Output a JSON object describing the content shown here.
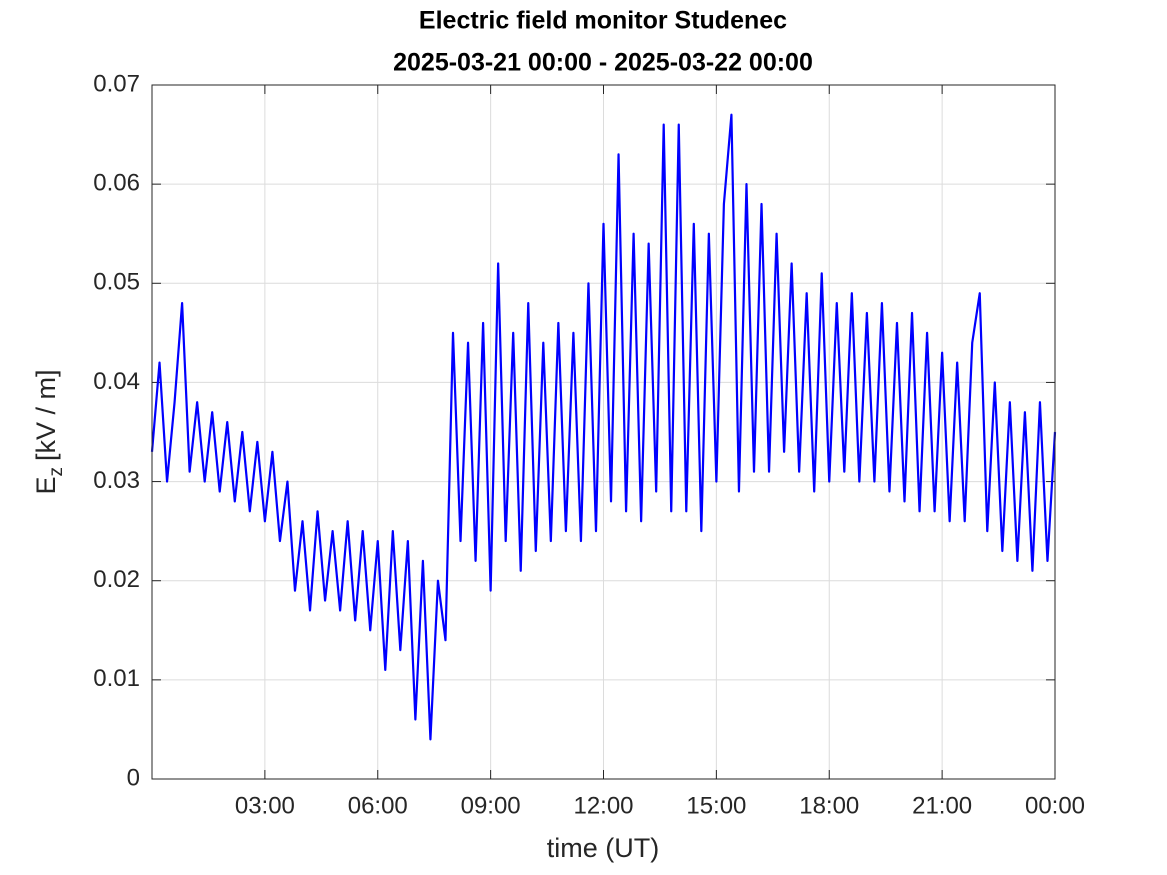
{
  "chart_data": {
    "type": "line",
    "title": "Electric field monitor Studenec",
    "subtitle": "2025-03-21 00:00 - 2025-03-22 00:00",
    "xlabel": "time (UT)",
    "ylabel_symbol": "E",
    "ylabel_subscript": "z",
    "ylabel_unit": "[kV / m]",
    "color": "#0000ff",
    "grid": true,
    "xlim": [
      0,
      24
    ],
    "xticks": [
      {
        "value": 3,
        "label": "03:00"
      },
      {
        "value": 6,
        "label": "06:00"
      },
      {
        "value": 9,
        "label": "09:00"
      },
      {
        "value": 12,
        "label": "12:00"
      },
      {
        "value": 15,
        "label": "15:00"
      },
      {
        "value": 18,
        "label": "18:00"
      },
      {
        "value": 21,
        "label": "21:00"
      },
      {
        "value": 24,
        "label": "00:00"
      }
    ],
    "ylim": [
      0,
      0.07
    ],
    "yticks": [
      0,
      0.01,
      0.02,
      0.03,
      0.04,
      0.05,
      0.06,
      0.07
    ],
    "x": [
      0,
      0.2,
      0.4,
      0.6,
      0.8,
      1,
      1.2,
      1.4,
      1.6,
      1.8,
      2,
      2.2,
      2.4,
      2.6,
      2.8,
      3,
      3.2,
      3.4,
      3.6,
      3.8,
      4,
      4.2,
      4.4,
      4.6,
      4.8,
      5,
      5.2,
      5.4,
      5.6,
      5.8,
      6,
      6.2,
      6.4,
      6.6,
      6.8,
      7,
      7.2,
      7.4,
      7.6,
      7.8,
      8,
      8.2,
      8.4,
      8.6,
      8.8,
      9,
      9.2,
      9.4,
      9.6,
      9.8,
      10,
      10.2,
      10.4,
      10.6,
      10.8,
      11,
      11.2,
      11.4,
      11.6,
      11.8,
      12,
      12.2,
      12.4,
      12.6,
      12.8,
      13,
      13.2,
      13.4,
      13.6,
      13.8,
      14,
      14.2,
      14.4,
      14.6,
      14.8,
      15,
      15.2,
      15.4,
      15.6,
      15.8,
      16,
      16.2,
      16.4,
      16.6,
      16.8,
      17,
      17.2,
      17.4,
      17.6,
      17.8,
      18,
      18.2,
      18.4,
      18.6,
      18.8,
      19,
      19.2,
      19.4,
      19.6,
      19.8,
      20,
      20.2,
      20.4,
      20.6,
      20.8,
      21,
      21.2,
      21.4,
      21.6,
      21.8,
      22,
      22.2,
      22.4,
      22.6,
      22.8,
      23,
      23.2,
      23.4,
      23.6,
      23.8,
      24
    ],
    "values": [
      0.033,
      0.042,
      0.03,
      0.038,
      0.048,
      0.031,
      0.038,
      0.03,
      0.037,
      0.029,
      0.036,
      0.028,
      0.035,
      0.027,
      0.034,
      0.026,
      0.033,
      0.024,
      0.03,
      0.019,
      0.026,
      0.017,
      0.027,
      0.018,
      0.025,
      0.017,
      0.026,
      0.016,
      0.025,
      0.015,
      0.024,
      0.011,
      0.025,
      0.013,
      0.024,
      0.006,
      0.022,
      0.004,
      0.02,
      0.014,
      0.045,
      0.024,
      0.044,
      0.022,
      0.046,
      0.019,
      0.052,
      0.024,
      0.045,
      0.021,
      0.048,
      0.023,
      0.044,
      0.024,
      0.046,
      0.025,
      0.045,
      0.024,
      0.05,
      0.025,
      0.056,
      0.028,
      0.063,
      0.027,
      0.055,
      0.026,
      0.054,
      0.029,
      0.066,
      0.027,
      0.066,
      0.027,
      0.056,
      0.025,
      0.055,
      0.03,
      0.058,
      0.067,
      0.029,
      0.06,
      0.031,
      0.058,
      0.031,
      0.055,
      0.033,
      0.052,
      0.031,
      0.049,
      0.029,
      0.051,
      0.03,
      0.048,
      0.031,
      0.049,
      0.03,
      0.047,
      0.03,
      0.048,
      0.029,
      0.046,
      0.028,
      0.047,
      0.027,
      0.045,
      0.027,
      0.043,
      0.026,
      0.042,
      0.026,
      0.044,
      0.049,
      0.025,
      0.04,
      0.023,
      0.038,
      0.022,
      0.037,
      0.021,
      0.038,
      0.022,
      0.035
    ]
  }
}
